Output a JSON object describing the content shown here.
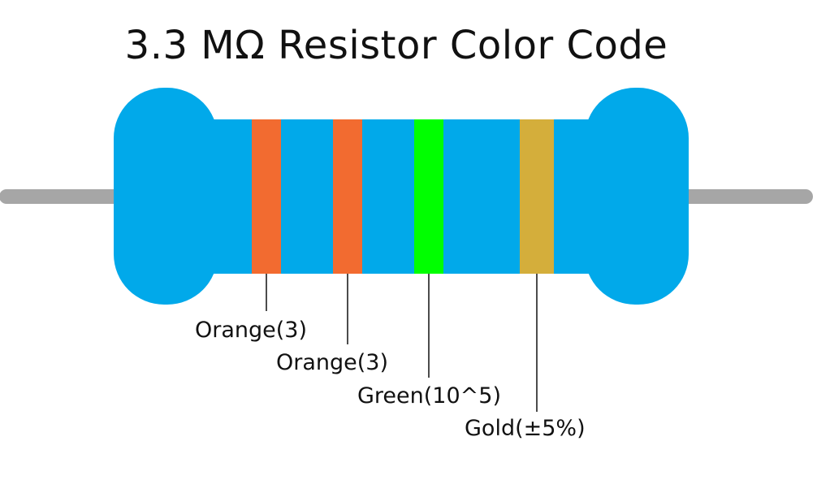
{
  "title": "3.3 MΩ Resistor Color Code",
  "colors": {
    "body": "#01a9ea",
    "lead": "#a6a6a6",
    "leader_line": "#111111"
  },
  "bands": [
    {
      "color_name": "Orange",
      "hex": "#f26b30",
      "label": "Orange(3)"
    },
    {
      "color_name": "Orange",
      "hex": "#f26b30",
      "label": "Orange(3)"
    },
    {
      "color_name": "Green",
      "hex": "#00ff00",
      "label": "Green(10^5)"
    },
    {
      "color_name": "Gold",
      "hex": "#d4ae3b",
      "label": "Gold(±5%)"
    }
  ]
}
